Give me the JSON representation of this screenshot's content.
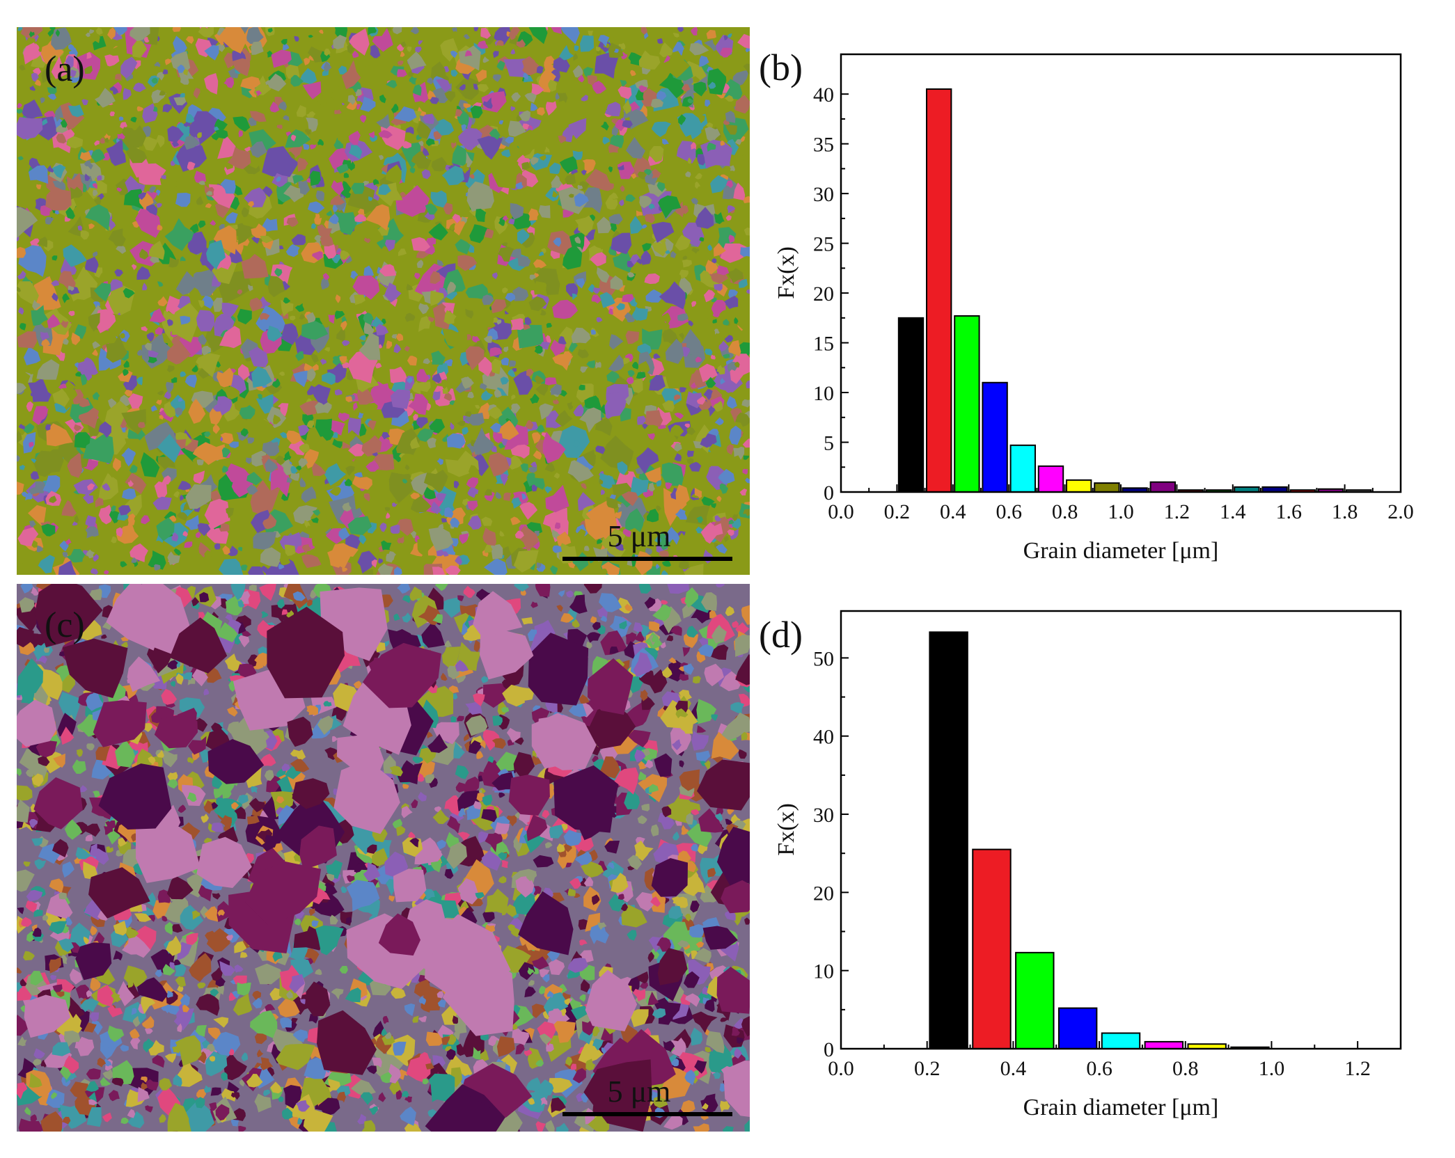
{
  "panels": {
    "a": {
      "label": "(a)",
      "scale_bar_text": "5 μm",
      "palette": [
        "#8a9a18",
        "#7f9020",
        "#9aa42a",
        "#909a78",
        "#3f9aa6",
        "#5b86c8",
        "#8b5fb6",
        "#6a4fa8",
        "#c04a9a",
        "#e0669a",
        "#3aa060",
        "#1f9a3a",
        "#d88a3a",
        "#6f7f8a",
        "#b06a5a"
      ]
    },
    "c": {
      "label": "(c)",
      "scale_bar_text": "5 μm",
      "palette": [
        "#5a0f3a",
        "#4a0a4a",
        "#7a1a5a",
        "#c07ab0",
        "#e0487e",
        "#3f9aa6",
        "#5b86c8",
        "#8b5fb6",
        "#9aa42a",
        "#c8b43a",
        "#6ab85a",
        "#2a9a8a",
        "#d88a3a",
        "#a0522d",
        "#909a78"
      ]
    }
  },
  "chart_data": [
    {
      "panel": "b",
      "label": "(b)",
      "type": "bar",
      "xlabel": "Grain diameter [μm]",
      "ylabel": "Fx(x)",
      "xlim": [
        0.0,
        2.0
      ],
      "ylim": [
        0,
        44
      ],
      "xticks": [
        "0.0",
        "0.2",
        "0.4",
        "0.6",
        "0.8",
        "1.0",
        "1.2",
        "1.4",
        "1.6",
        "1.8",
        "2.0"
      ],
      "yticks": [
        "0",
        "5",
        "10",
        "15",
        "20",
        "25",
        "30",
        "35",
        "40"
      ],
      "bin_width": 0.1,
      "bin_starts": [
        0.2,
        0.3,
        0.4,
        0.5,
        0.6,
        0.7,
        0.8,
        0.9,
        1.0,
        1.1,
        1.2,
        1.3,
        1.4,
        1.5,
        1.6,
        1.7,
        1.8
      ],
      "values": [
        17.5,
        40.5,
        17.7,
        11.0,
        4.7,
        2.6,
        1.2,
        0.9,
        0.4,
        1.0,
        0.2,
        0.2,
        0.5,
        0.5,
        0.2,
        0.3,
        0.2
      ],
      "colors": [
        "#000000",
        "#ed1c24",
        "#00ff00",
        "#0000ff",
        "#00ffff",
        "#ff00ff",
        "#ffff00",
        "#808000",
        "#000080",
        "#800080",
        "#800000",
        "#008000",
        "#008080",
        "#000080",
        "#ff0000",
        "#800080",
        "#808080"
      ]
    },
    {
      "panel": "d",
      "label": "(d)",
      "type": "bar",
      "xlabel": "Grain diameter [μm]",
      "ylabel": "Fx(x)",
      "xlim": [
        0.0,
        1.3
      ],
      "ylim": [
        0,
        56
      ],
      "xticks": [
        "0.0",
        "0.2",
        "0.4",
        "0.6",
        "0.8",
        "1.0",
        "1.2"
      ],
      "yticks": [
        "0",
        "10",
        "20",
        "30",
        "40",
        "50"
      ],
      "bin_width": 0.1,
      "bin_starts": [
        0.2,
        0.3,
        0.4,
        0.5,
        0.6,
        0.7,
        0.8,
        0.9
      ],
      "values": [
        53.3,
        25.5,
        12.3,
        5.2,
        2.0,
        0.9,
        0.6,
        0.2
      ],
      "colors": [
        "#000000",
        "#ed1c24",
        "#00ff00",
        "#0000ff",
        "#00ffff",
        "#ff00ff",
        "#ffff00",
        "#808000"
      ]
    }
  ]
}
